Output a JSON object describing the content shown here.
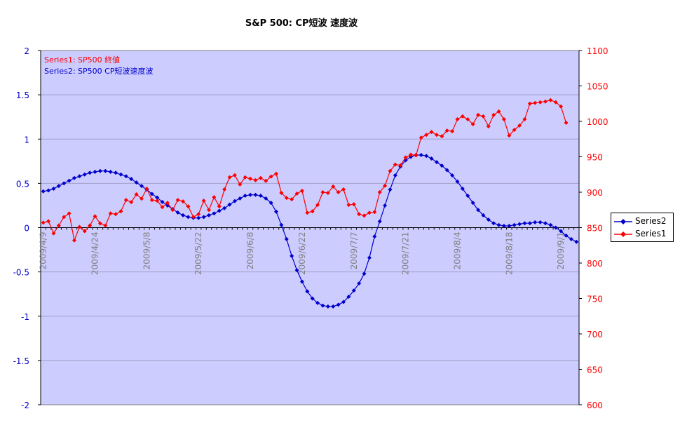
{
  "chart_data": {
    "type": "line",
    "title": "S&P 500:  CP短波  速度波",
    "annotations": [
      {
        "text": "Series1:  SP500  終値",
        "color": "#ff0000"
      },
      {
        "text": "Series2:  SP500  CP短波速度波",
        "color": "#0000cc"
      }
    ],
    "legend_position": "right",
    "plot_background": "#ccccff",
    "x_tick_labels": [
      "2009/4/9",
      "2009/4/24",
      "2009/5/8",
      "2009/5/22",
      "2009/6/8",
      "2009/6/22",
      "2009/7/7",
      "2009/7/21",
      "2009/8/4",
      "2009/8/18",
      "2009/9/1"
    ],
    "y_left": {
      "range": [
        -2,
        2
      ],
      "ticks": [
        "2",
        "1.5",
        "1",
        "0.5",
        "0",
        "-0.5",
        "-1",
        "-1.5",
        "-2"
      ],
      "color": "#0000cc"
    },
    "y_right": {
      "range": [
        600,
        1100
      ],
      "ticks": [
        "1100",
        "1050",
        "1000",
        "950",
        "900",
        "850",
        "800",
        "750",
        "700",
        "650",
        "600"
      ],
      "color": "#ff0000"
    },
    "series": [
      {
        "name": "Series2",
        "axis": "left",
        "color": "#0000cc",
        "marker": "diamond",
        "values": [
          0.41,
          0.42,
          0.44,
          0.47,
          0.5,
          0.53,
          0.56,
          0.58,
          0.6,
          0.62,
          0.63,
          0.64,
          0.64,
          0.63,
          0.62,
          0.6,
          0.58,
          0.55,
          0.51,
          0.47,
          0.43,
          0.38,
          0.34,
          0.29,
          0.25,
          0.21,
          0.17,
          0.14,
          0.12,
          0.11,
          0.11,
          0.12,
          0.14,
          0.16,
          0.19,
          0.22,
          0.26,
          0.3,
          0.33,
          0.36,
          0.37,
          0.37,
          0.36,
          0.33,
          0.28,
          0.18,
          0.03,
          -0.13,
          -0.32,
          -0.48,
          -0.61,
          -0.72,
          -0.8,
          -0.85,
          -0.88,
          -0.89,
          -0.89,
          -0.87,
          -0.84,
          -0.78,
          -0.71,
          -0.63,
          -0.52,
          -0.34,
          -0.1,
          0.07,
          0.25,
          0.43,
          0.59,
          0.69,
          0.76,
          0.8,
          0.82,
          0.82,
          0.81,
          0.78,
          0.74,
          0.7,
          0.65,
          0.59,
          0.52,
          0.44,
          0.36,
          0.28,
          0.2,
          0.14,
          0.09,
          0.05,
          0.03,
          0.02,
          0.02,
          0.03,
          0.04,
          0.05,
          0.05,
          0.06,
          0.06,
          0.05,
          0.03,
          0.0,
          -0.04,
          -0.09,
          -0.13,
          -0.16
        ]
      },
      {
        "name": "Series1",
        "axis": "right",
        "color": "#ff0000",
        "marker": "diamond",
        "values": [
          857,
          859,
          842,
          853,
          865,
          870,
          832,
          851,
          845,
          853,
          866,
          856,
          853,
          870,
          869,
          873,
          889,
          886,
          897,
          891,
          905,
          889,
          888,
          879,
          885,
          875,
          889,
          887,
          880,
          865,
          869,
          888,
          875,
          893,
          880,
          904,
          921,
          924,
          911,
          921,
          919,
          917,
          920,
          916,
          922,
          926,
          899,
          892,
          890,
          898,
          902,
          871,
          873,
          882,
          900,
          899,
          908,
          900,
          904,
          882,
          883,
          869,
          867,
          871,
          872,
          900,
          909,
          930,
          939,
          938,
          949,
          953,
          952,
          977,
          981,
          985,
          981,
          979,
          987,
          986,
          1003,
          1007,
          1003,
          996,
          1009,
          1007,
          993,
          1009,
          1014,
          1003,
          980,
          988,
          994,
          1003,
          1025,
          1026,
          1027,
          1028,
          1030,
          1027,
          1021,
          998
        ]
      }
    ]
  }
}
